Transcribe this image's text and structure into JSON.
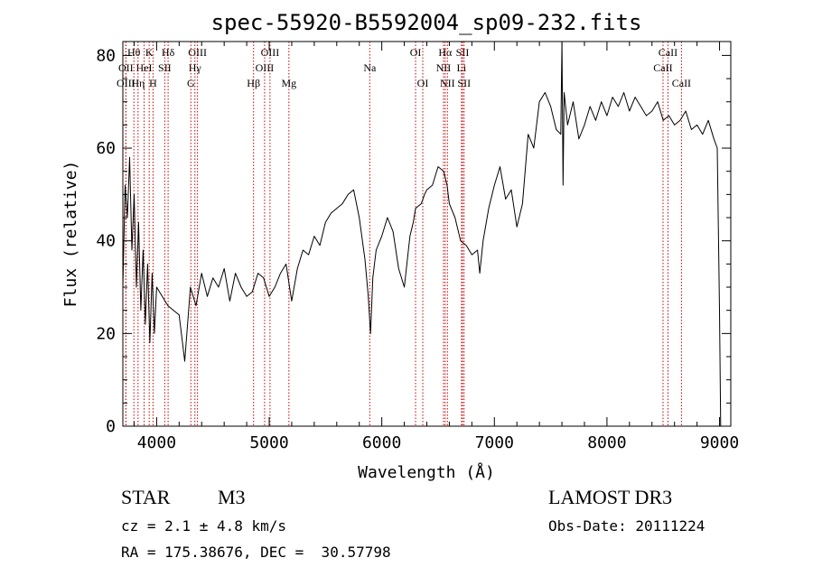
{
  "chart_data": {
    "type": "line",
    "title": "spec-55920-B5592004_sp09-232.fits",
    "xlabel": "Wavelength (Å)",
    "ylabel": "Flux (relative)",
    "xlim": [
      3700,
      9100
    ],
    "ylim": [
      0,
      83
    ],
    "xticks": [
      4000,
      5000,
      6000,
      7000,
      8000,
      9000
    ],
    "yticks": [
      0,
      20,
      40,
      60,
      80
    ],
    "grid": false,
    "series": [
      {
        "name": "flux",
        "x": [
          3700,
          3720,
          3740,
          3760,
          3780,
          3800,
          3820,
          3840,
          3860,
          3880,
          3900,
          3920,
          3940,
          3960,
          3980,
          4000,
          4050,
          4100,
          4150,
          4200,
          4250,
          4300,
          4350,
          4400,
          4450,
          4500,
          4550,
          4600,
          4650,
          4700,
          4750,
          4800,
          4850,
          4900,
          4950,
          5000,
          5050,
          5100,
          5150,
          5200,
          5250,
          5300,
          5350,
          5400,
          5450,
          5500,
          5550,
          5600,
          5650,
          5700,
          5750,
          5800,
          5850,
          5880,
          5900,
          5920,
          5950,
          6000,
          6050,
          6100,
          6150,
          6200,
          6250,
          6280,
          6300,
          6350,
          6380,
          6400,
          6450,
          6500,
          6550,
          6580,
          6600,
          6650,
          6700,
          6750,
          6800,
          6850,
          6870,
          6900,
          6950,
          7000,
          7050,
          7100,
          7150,
          7200,
          7250,
          7300,
          7350,
          7400,
          7450,
          7500,
          7550,
          7590,
          7600,
          7610,
          7620,
          7650,
          7700,
          7750,
          7800,
          7850,
          7900,
          7950,
          8000,
          8050,
          8100,
          8150,
          8200,
          8250,
          8300,
          8350,
          8400,
          8450,
          8500,
          8550,
          8600,
          8650,
          8700,
          8750,
          8800,
          8850,
          8900,
          8950,
          8980,
          9000,
          9010
        ],
        "y": [
          30,
          52,
          45,
          58,
          38,
          50,
          30,
          44,
          25,
          38,
          22,
          35,
          18,
          33,
          20,
          30,
          28,
          26,
          25,
          24,
          14,
          30,
          26,
          33,
          28,
          32,
          30,
          34,
          27,
          33,
          30,
          28,
          29,
          33,
          32,
          28,
          30,
          33,
          35,
          27,
          34,
          38,
          37,
          41,
          39,
          44,
          46,
          47,
          48,
          50,
          51,
          45,
          36,
          28,
          20,
          32,
          38,
          41,
          45,
          42,
          34,
          30,
          41,
          44,
          47,
          48,
          50,
          51,
          52,
          56,
          55,
          52,
          48,
          45,
          40,
          39,
          37,
          38,
          33,
          40,
          47,
          52,
          56,
          49,
          51,
          43,
          48,
          63,
          60,
          70,
          72,
          69,
          64,
          63,
          83,
          52,
          72,
          65,
          70,
          62,
          65,
          69,
          66,
          70,
          67,
          71,
          69,
          72,
          68,
          71,
          69,
          67,
          68,
          70,
          66,
          67,
          65,
          66,
          68,
          64,
          65,
          63,
          66,
          62,
          60,
          25,
          0
        ]
      }
    ],
    "spectral_lines": [
      {
        "label": "Hθ",
        "row": 1,
        "wavelength": 3798
      },
      {
        "label": "K",
        "row": 1,
        "wavelength": 3934
      },
      {
        "label": "Hδ",
        "row": 1,
        "wavelength": 4102
      },
      {
        "label": "OIII",
        "row": 1,
        "wavelength": 4363
      },
      {
        "label": "OIII",
        "row": 1,
        "wavelength": 5007
      },
      {
        "label": "OI",
        "row": 1,
        "wavelength": 6300
      },
      {
        "label": "Hα",
        "row": 1,
        "wavelength": 6563
      },
      {
        "label": "SII",
        "row": 1,
        "wavelength": 6717
      },
      {
        "label": "CaII",
        "row": 1,
        "wavelength": 8542
      },
      {
        "label": "OII",
        "row": 2,
        "wavelength": 3727
      },
      {
        "label": "HeI",
        "row": 2,
        "wavelength": 3889
      },
      {
        "label": "SII",
        "row": 2,
        "wavelength": 4072
      },
      {
        "label": "Hγ",
        "row": 2,
        "wavelength": 4340
      },
      {
        "label": "OIII",
        "row": 2,
        "wavelength": 4959
      },
      {
        "label": "Na",
        "row": 2,
        "wavelength": 5893
      },
      {
        "label": "NII",
        "row": 2,
        "wavelength": 6548
      },
      {
        "label": "Li",
        "row": 2,
        "wavelength": 6708
      },
      {
        "label": "CaII",
        "row": 2,
        "wavelength": 8498
      },
      {
        "label": "OIII",
        "row": 3,
        "wavelength": 3727
      },
      {
        "label": "Hη",
        "row": 3,
        "wavelength": 3835
      },
      {
        "label": "H",
        "row": 3,
        "wavelength": 3968
      },
      {
        "label": "G",
        "row": 3,
        "wavelength": 4304
      },
      {
        "label": "Hβ",
        "row": 3,
        "wavelength": 4861
      },
      {
        "label": "Mg",
        "row": 3,
        "wavelength": 5175
      },
      {
        "label": "OI",
        "row": 3,
        "wavelength": 6364
      },
      {
        "label": "NII",
        "row": 3,
        "wavelength": 6583
      },
      {
        "label": "SII",
        "row": 3,
        "wavelength": 6731
      },
      {
        "label": "CaII",
        "row": 3,
        "wavelength": 8662
      }
    ]
  },
  "info": {
    "object_class": "STAR",
    "subclass": "M3",
    "survey": "LAMOST DR3",
    "cz": "cz = 2.1 ± 4.8 km/s",
    "obs_date": "Obs-Date: 20111224",
    "coords": "RA = 175.38676, DEC =  30.57798"
  },
  "colors": {
    "line_marker": "#cc0000",
    "spectrum": "#000000",
    "axes": "#000000"
  }
}
